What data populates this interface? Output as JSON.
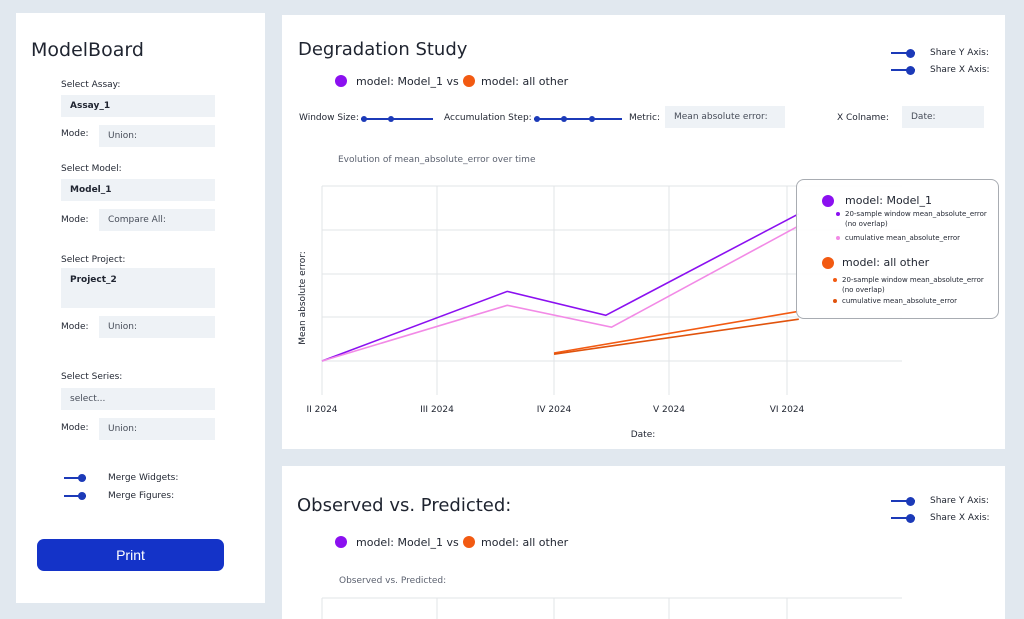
{
  "app": {
    "title": "ModelBoard"
  },
  "sidebar": {
    "assay": {
      "label": "Select Assay:",
      "value": "Assay_1",
      "mode_label": "Mode:",
      "mode_value": "Union:"
    },
    "model": {
      "label": "Select Model:",
      "value": "Model_1",
      "mode_label": "Mode:",
      "mode_value": "Compare All:"
    },
    "project": {
      "label": "Select Project:",
      "value": "Project_2",
      "mode_label": "Mode:",
      "mode_value": "Union:"
    },
    "series": {
      "label": "Select Series:",
      "placeholder": "select...",
      "mode_label": "Mode:",
      "mode_value": "Union:"
    },
    "merge_widgets_label": "Merge Widgets:",
    "merge_figures_label": "Merge Figures:",
    "print_label": "Print"
  },
  "degradation": {
    "title": "Degradation Study",
    "share_y_label": "Share Y Axis:",
    "share_x_label": "Share X Axis:",
    "legend": [
      {
        "label": "model: Model_1 vs",
        "color": "#8b10f0"
      },
      {
        "label": "model: all other",
        "color": "#f25a12"
      }
    ],
    "controls": {
      "window_size_label": "Window Size:",
      "accumulation_step_label": "Accumulation Step:",
      "metric_label": "Metric:",
      "metric_value": "Mean absolute error:",
      "x_colname_label": "X Colname:",
      "x_colname_value": "Date:"
    },
    "tooltip": {
      "groups": [
        {
          "title": "model: Model_1",
          "color": "#8b10f0",
          "items": [
            {
              "label": "20-sample window mean_absolute_error",
              "sub": "(no overlap)",
              "color": "#8b10f0"
            },
            {
              "label": "cumulative mean_absolute_error",
              "sub": "",
              "color": "#f28ae6"
            }
          ]
        },
        {
          "title": "model: all other",
          "color": "#f25a12",
          "items": [
            {
              "label": "20-sample window mean_absolute_error",
              "sub": "(no overlap)",
              "color": "#f25a12"
            },
            {
              "label": "cumulative mean_absolute_error",
              "sub": "",
              "color": "#e0530d"
            }
          ]
        }
      ]
    }
  },
  "chart_data": {
    "type": "line",
    "title": "Evolution of mean_absolute_error over time",
    "xlabel": "Date:",
    "ylabel": "Mean absolute error:",
    "x_ticks": [
      "II 2024",
      "III 2024",
      "IV 2024",
      "V 2024",
      "VI 2024"
    ],
    "xlim": [
      2.0,
      7.0
    ],
    "ylim": [
      0,
      4.4
    ],
    "grid": true,
    "y_tick_labels_visible": false,
    "series": [
      {
        "name": "20-sample window mean_absolute_error (no overlap)",
        "group": "model: Model_1",
        "color": "#8b10f0",
        "x": [
          2.0,
          3.6,
          4.45,
          6.1
        ],
        "y": [
          0.0,
          1.75,
          1.15,
          3.7
        ]
      },
      {
        "name": "cumulative mean_absolute_error",
        "group": "model: Model_1",
        "color": "#f28ae6",
        "x": [
          2.0,
          3.6,
          4.5,
          6.1
        ],
        "y": [
          0.0,
          1.4,
          0.85,
          3.4
        ]
      },
      {
        "name": "20-sample window mean_absolute_error (no overlap)",
        "group": "model: all other",
        "color": "#f25a12",
        "x": [
          4.0,
          6.1
        ],
        "y": [
          0.2,
          1.25
        ]
      },
      {
        "name": "cumulative mean_absolute_error",
        "group": "model: all other",
        "color": "#e0530d",
        "x": [
          4.0,
          6.1
        ],
        "y": [
          0.17,
          1.05
        ]
      }
    ]
  },
  "observed": {
    "title": "Observed vs. Predicted:",
    "share_y_label": "Share Y Axis:",
    "share_x_label": "Share X Axis:",
    "legend": [
      {
        "label": "model: Model_1 vs",
        "color": "#8b10f0"
      },
      {
        "label": "model: all other",
        "color": "#f25a12"
      }
    ],
    "chart_title": "Observed vs. Predicted:"
  }
}
